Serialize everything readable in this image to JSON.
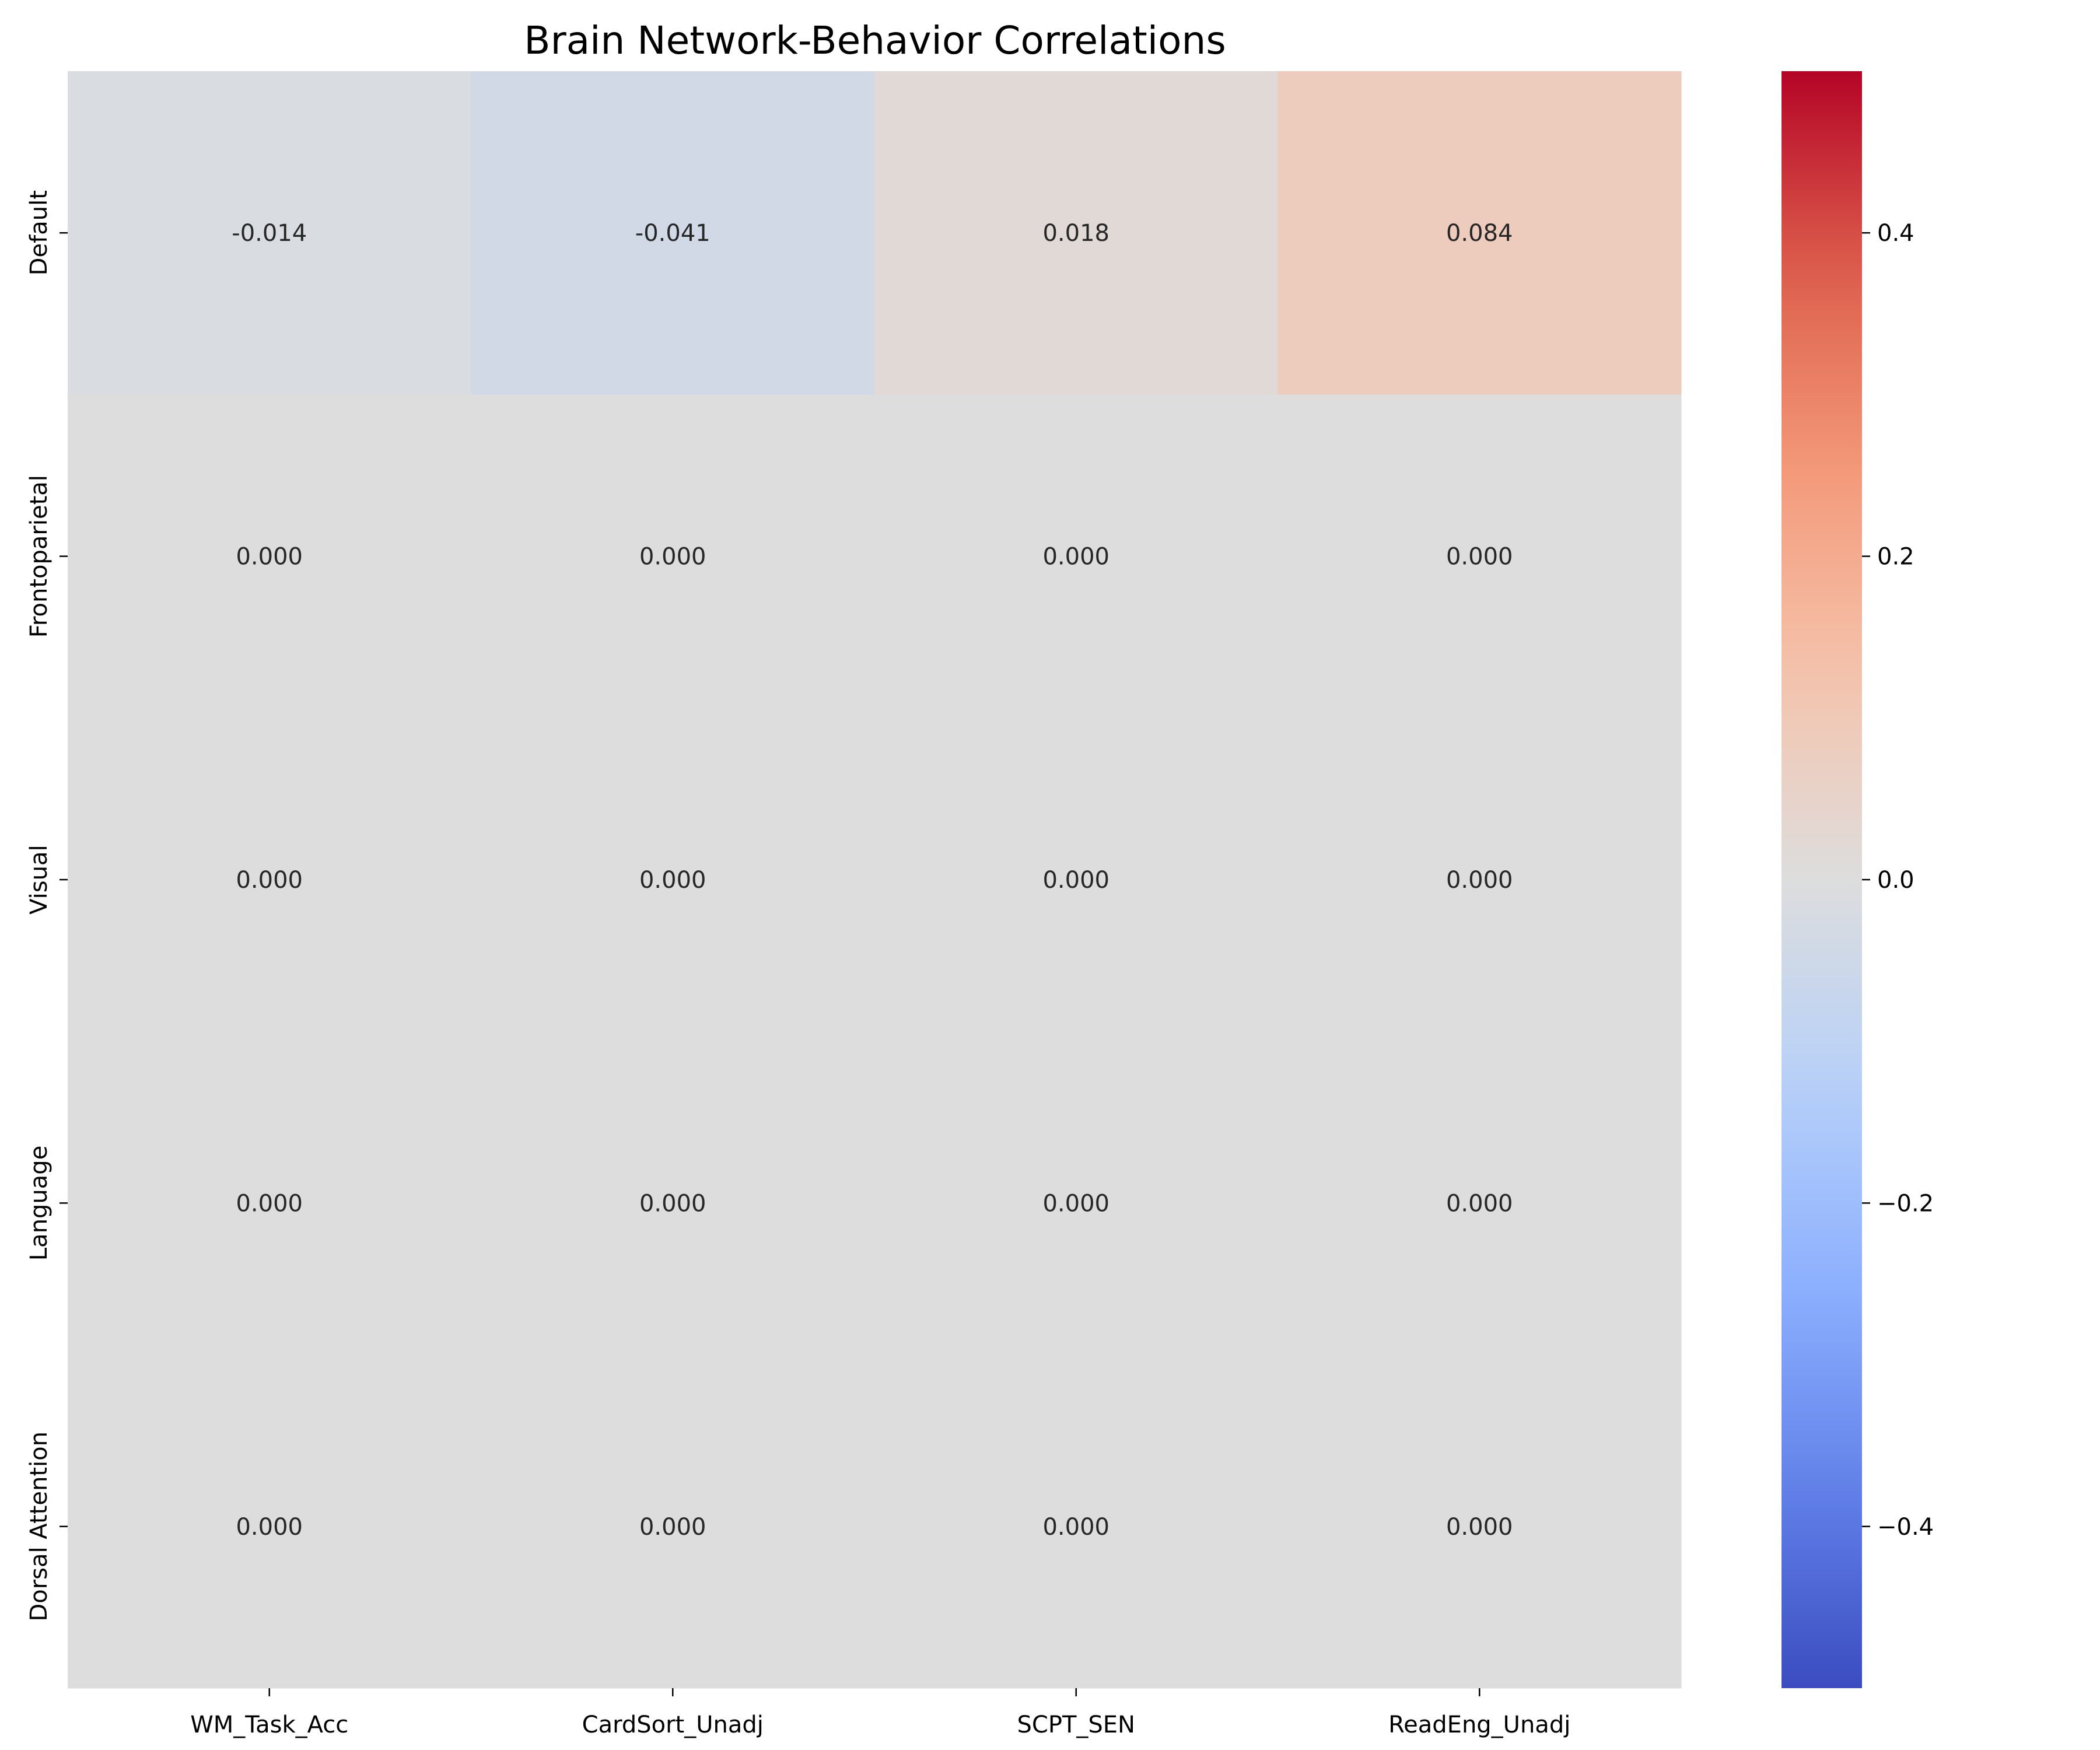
{
  "chart_data": {
    "type": "heatmap",
    "title": "Brain Network-Behavior Correlations",
    "xlabel": "",
    "ylabel": "",
    "columns": [
      "WM_Task_Acc",
      "CardSort_Unadj",
      "SCPT_SEN",
      "ReadEng_Unadj"
    ],
    "rows": [
      "Default",
      "Frontoparietal",
      "Visual",
      "Language",
      "Dorsal Attention"
    ],
    "values": [
      [
        -0.014,
        -0.041,
        0.018,
        0.084
      ],
      [
        0.0,
        0.0,
        0.0,
        0.0
      ],
      [
        0.0,
        0.0,
        0.0,
        0.0
      ],
      [
        0.0,
        0.0,
        0.0,
        0.0
      ],
      [
        0.0,
        0.0,
        0.0,
        0.0
      ]
    ],
    "value_labels": [
      [
        "-0.014",
        "-0.041",
        "0.018",
        "0.084"
      ],
      [
        "0.000",
        "0.000",
        "0.000",
        "0.000"
      ],
      [
        "0.000",
        "0.000",
        "0.000",
        "0.000"
      ],
      [
        "0.000",
        "0.000",
        "0.000",
        "0.000"
      ],
      [
        "0.000",
        "0.000",
        "0.000",
        "0.000"
      ]
    ],
    "colormap": "coolwarm",
    "vmin": -0.5,
    "vmax": 0.5,
    "colorbar_ticks": [
      0.4,
      0.2,
      0.0,
      -0.2,
      -0.4
    ],
    "colorbar_tick_labels": [
      "0.4",
      "0.2",
      "0.0",
      "−0.2",
      "−0.4"
    ],
    "grid": false,
    "legend": "colorbar-right"
  }
}
